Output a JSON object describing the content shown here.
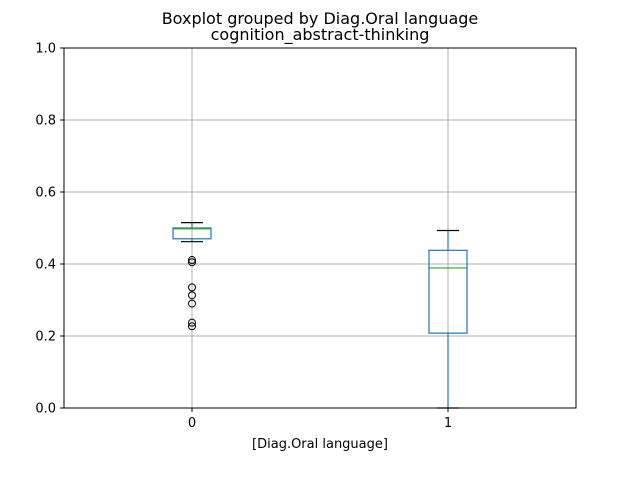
{
  "chart_data": {
    "type": "boxplot",
    "suptitle": "Boxplot grouped by Diag.Oral language",
    "title": "cognition_abstract-thinking",
    "xlabel": "[Diag.Oral language]",
    "ylabel": "",
    "categories": [
      "0",
      "1"
    ],
    "ylim": [
      0.0,
      1.0
    ],
    "yticks": [
      "0.0",
      "0.2",
      "0.4",
      "0.6",
      "0.8",
      "1.0"
    ],
    "grid": true,
    "boxes": [
      {
        "category": "0",
        "whisker_low": 0.462,
        "q1": 0.47,
        "median": 0.498,
        "q3": 0.5,
        "whisker_high": 0.515,
        "outliers": [
          0.411,
          0.405,
          0.335,
          0.313,
          0.29,
          0.237,
          0.227
        ]
      },
      {
        "category": "1",
        "whisker_low": 0.0,
        "q1": 0.208,
        "median": 0.389,
        "q3": 0.438,
        "whisker_high": 0.493,
        "outliers": []
      }
    ],
    "colors": {
      "box": "#1f77b4",
      "median": "#2ca02c",
      "whisker_cap": "#000000",
      "grid": "#b0b0b0"
    }
  }
}
